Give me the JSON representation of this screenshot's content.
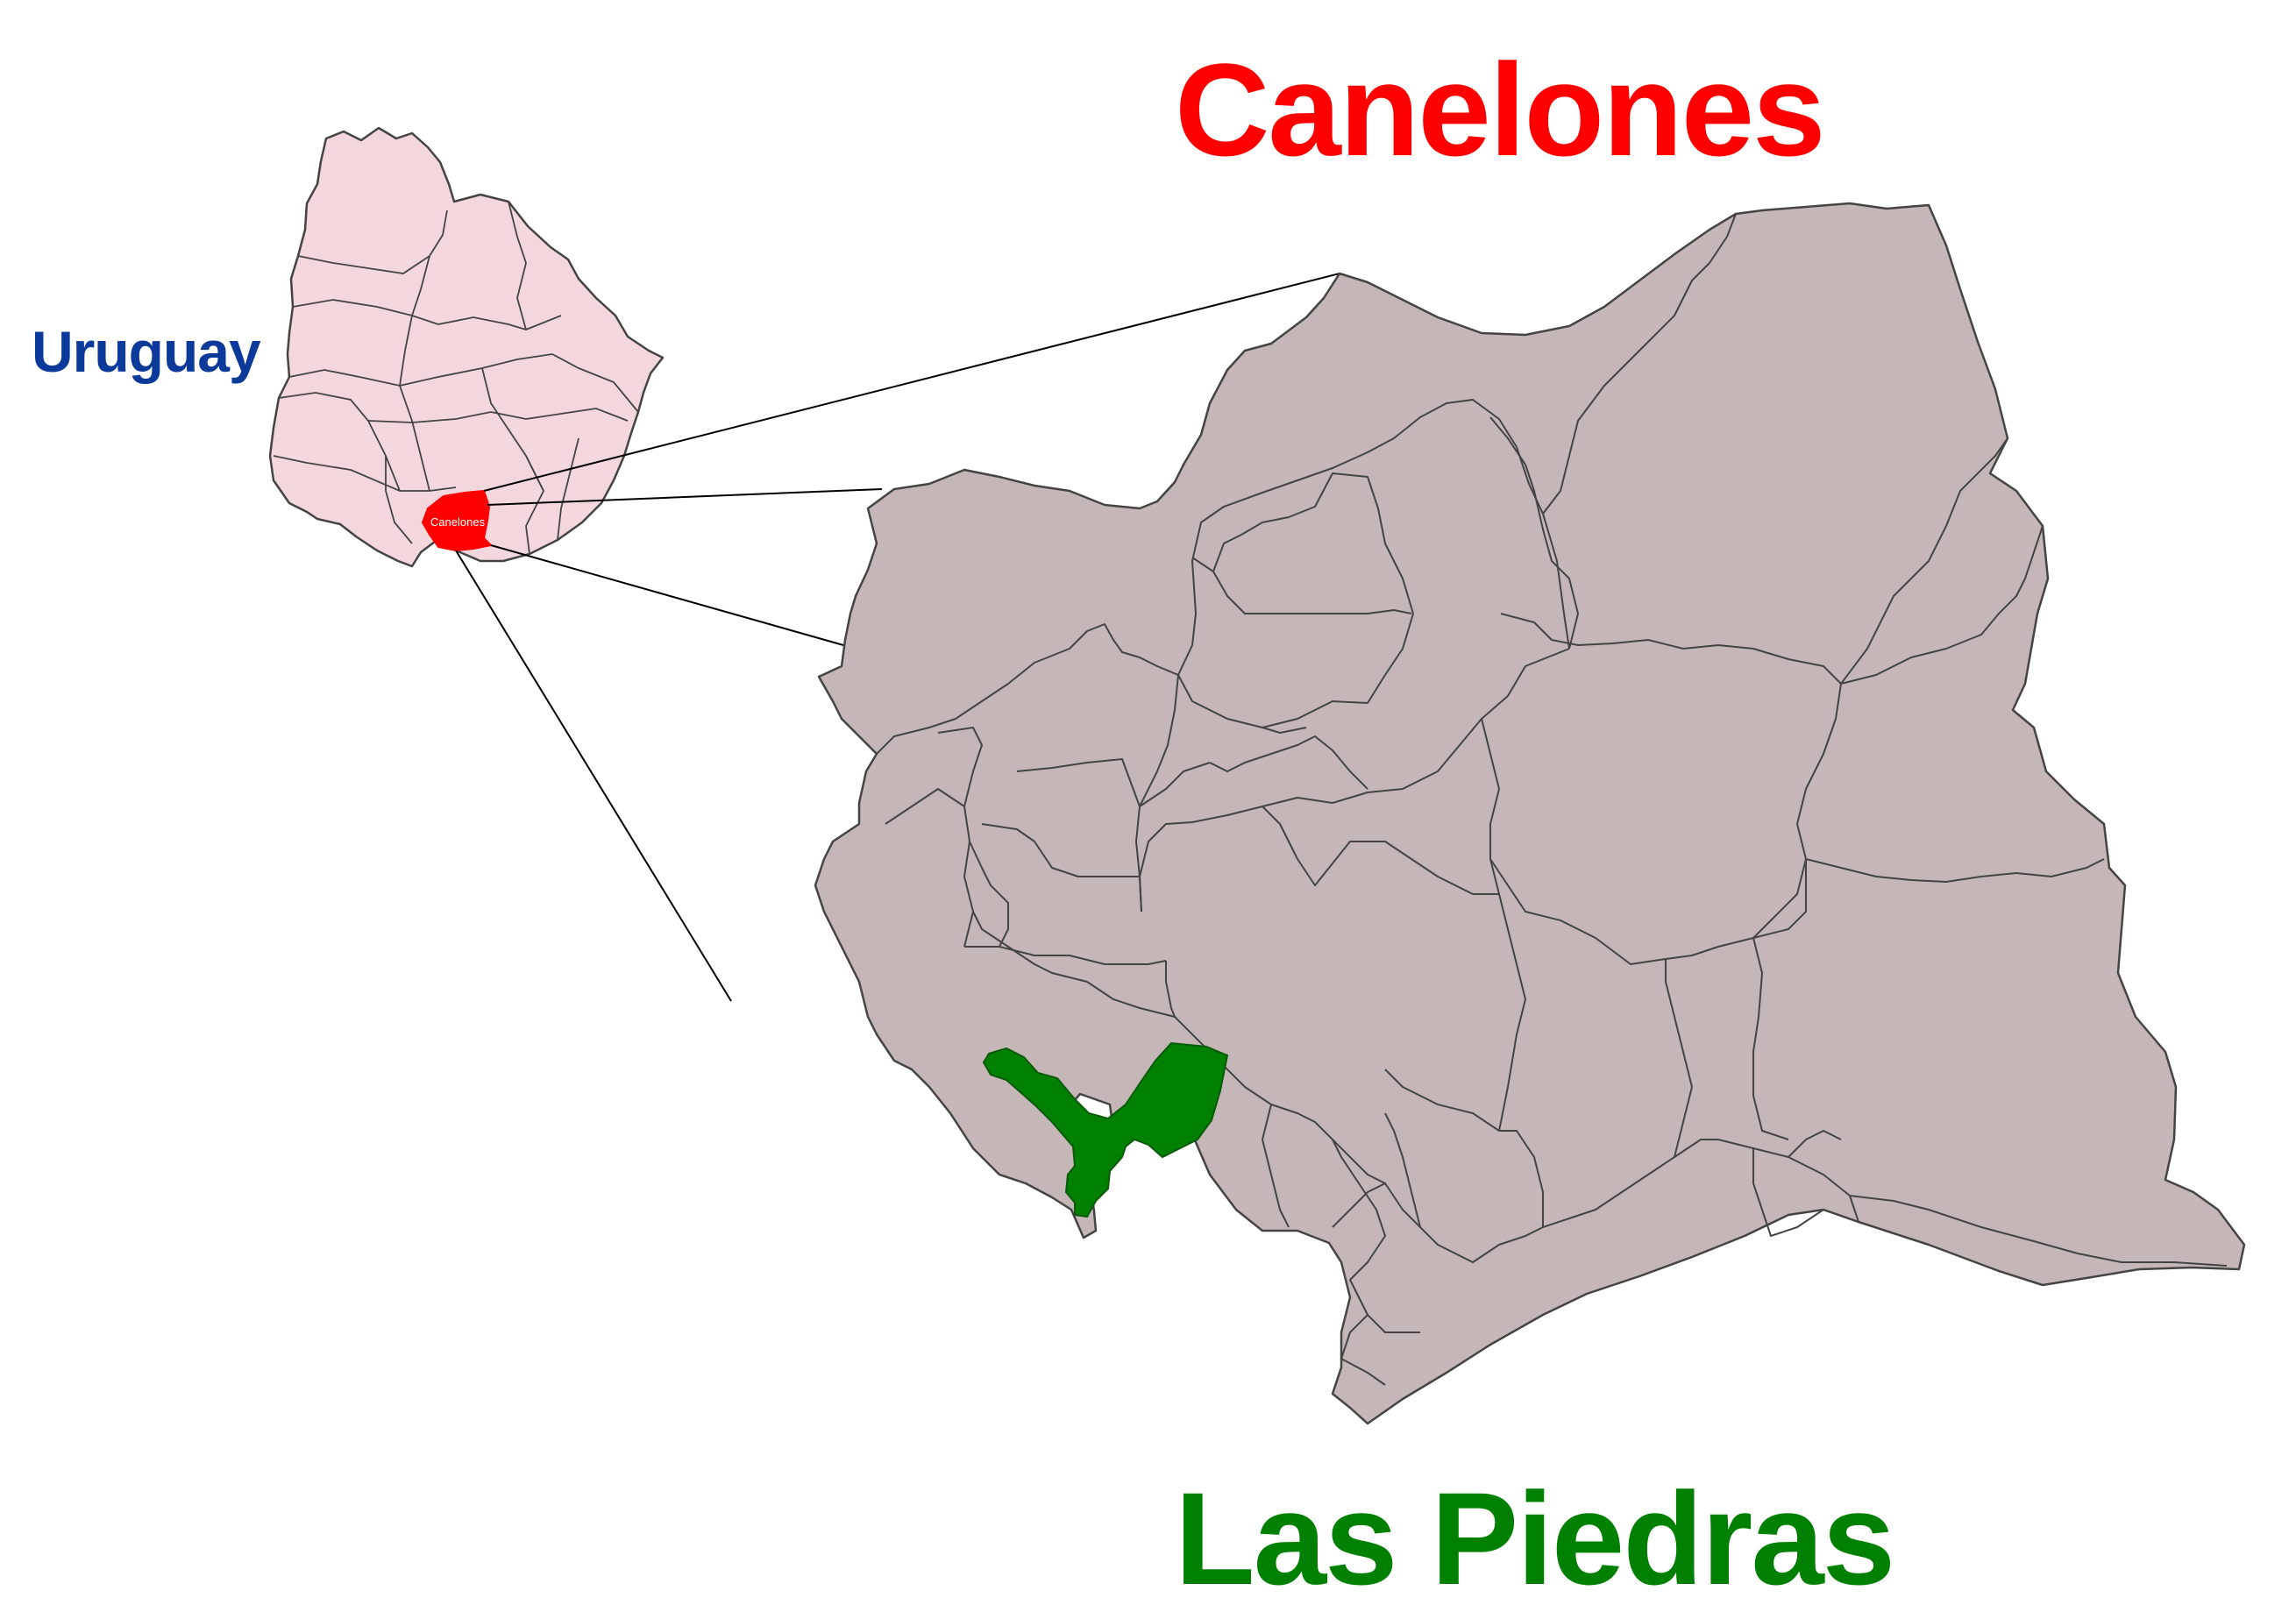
{
  "titles": {
    "department": "Canelones",
    "municipality": "Las Piedras",
    "country": "Uruguay"
  },
  "inset": {
    "highlight_label": "Canelones"
  },
  "colors": {
    "department_title": "#ff0000",
    "municipality_title": "#008000",
    "country_label": "#0b3a9a",
    "uruguay_fill": "#f4d7dc",
    "canelones_inset_fill": "#ff0000",
    "department_fill": "#c5b7b8",
    "municipality_fill": "#008000",
    "border_stroke": "#444444",
    "connector_stroke": "#000000"
  }
}
